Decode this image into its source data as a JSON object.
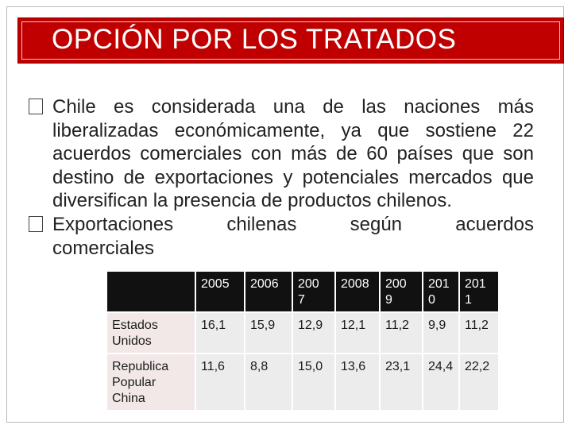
{
  "slide": {
    "title": "OPCIÓN POR LOS TRATADOS",
    "paragraph1": "Chile es considerada una de las naciones más liberalizadas económicamente, ya que sostiene 22 acuerdos comerciales con más de 60 países que son destino de exportaciones y potenciales mercados que diversifican la presencia de productos chilenos.",
    "paragraph2_words": [
      "Exportaciones",
      "chilenas",
      "según",
      "acuerdos"
    ],
    "paragraph2_tail": "comerciales",
    "bullet_glyph": "",
    "accent_color": "#c00000"
  },
  "table": {
    "headers": [
      "2005",
      "2006",
      "200\n7",
      "2008",
      "200\n9",
      "201\n0",
      "201\n1"
    ],
    "rows": [
      {
        "label": "Estados Unidos",
        "values": [
          "16,1",
          "15,9",
          "12,9",
          "12,1",
          "11,2",
          "9,9",
          "11,2"
        ]
      },
      {
        "label": "Republica Popular China",
        "values": [
          "11,6",
          "8,8",
          "15,0",
          "13,6",
          "23,1",
          "24,4",
          "22,2"
        ]
      }
    ]
  }
}
